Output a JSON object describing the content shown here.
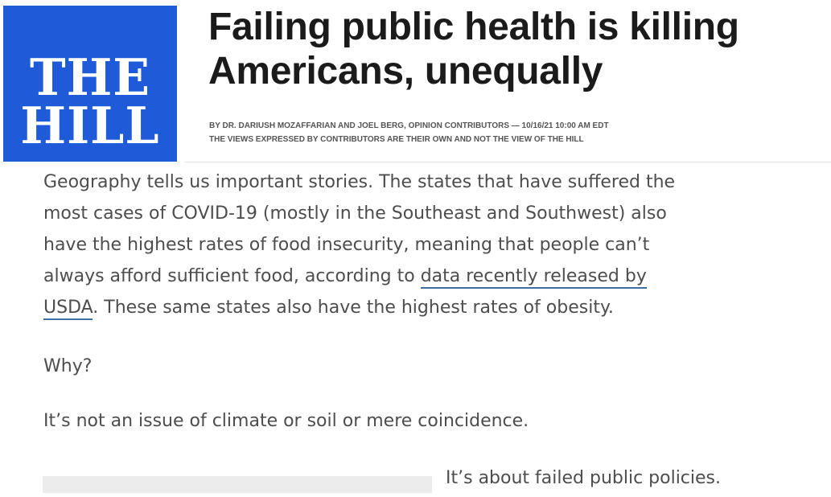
{
  "logo": {
    "line1": "THE",
    "line2": "HILL",
    "background": "#1f5bd8"
  },
  "article": {
    "headline_line1": "Failing public health is killing",
    "headline_line2": "Americans, unequally",
    "byline": "BY DR. DARIUSH MOZAFFARIAN AND JOEL BERG, OPINION CONTRIBUTORS — 10/16/21 10:00 AM EDT",
    "disclaimer": "THE VIEWS EXPRESSED BY CONTRIBUTORS ARE THEIR OWN AND NOT THE VIEW OF THE HILL",
    "paragraph1": {
      "line1": "Geography tells us important stories. The states that have suffered the",
      "line2": "most cases of COVID-19 (mostly in the Southeast and Southwest) also",
      "line3": "have the highest rates of food insecurity, meaning that people can’t",
      "line4_before": "always afford sufficient food, according to ",
      "link_part1": "data recently released by",
      "link_part2": "USDA",
      "line5_after": ". These same states also have the highest rates of obesity."
    },
    "paragraph2": "Why?",
    "paragraph3": "It’s not an issue of climate or soil or mere coincidence.",
    "paragraph4": "It’s about failed public policies."
  },
  "colors": {
    "link_underline": "#3f6fa8",
    "body_text": "#4d4d4d",
    "headline_text": "#1b1b1b"
  }
}
